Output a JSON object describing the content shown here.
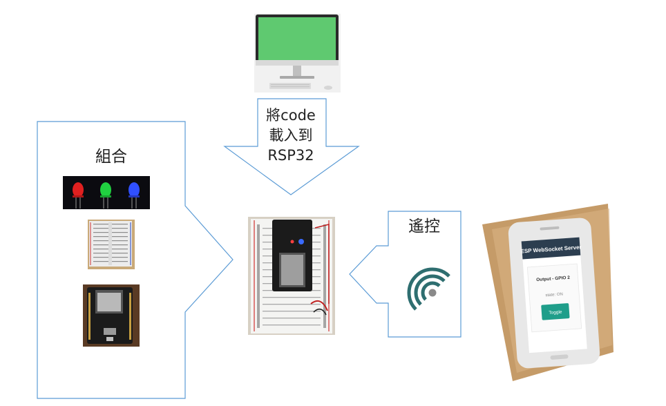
{
  "combine": {
    "title": "組合"
  },
  "upload_arrow": {
    "lines": [
      "將code",
      "載入到",
      "RSP32"
    ]
  },
  "remote": {
    "title": "遙控"
  },
  "phone_app": {
    "header": "ESP WebSocket Server",
    "output_label": "Output - GPIO 2",
    "state_label": "state: ON",
    "toggle_button": "Toggle"
  },
  "colors": {
    "outline": "#5b9bd5",
    "monitor_screen": "#5fc970",
    "wifi_icon": "#2e6e70",
    "app_header": "#2c3e50",
    "toggle_button": "#1f9e8a",
    "led_red": "#e02020",
    "led_green": "#20d040",
    "led_blue": "#3050ff"
  },
  "icons": [
    "monitor-icon",
    "led-set-icon",
    "breadboard-icon",
    "esp32-board-icon",
    "wifi-icon",
    "smartphone-icon"
  ]
}
